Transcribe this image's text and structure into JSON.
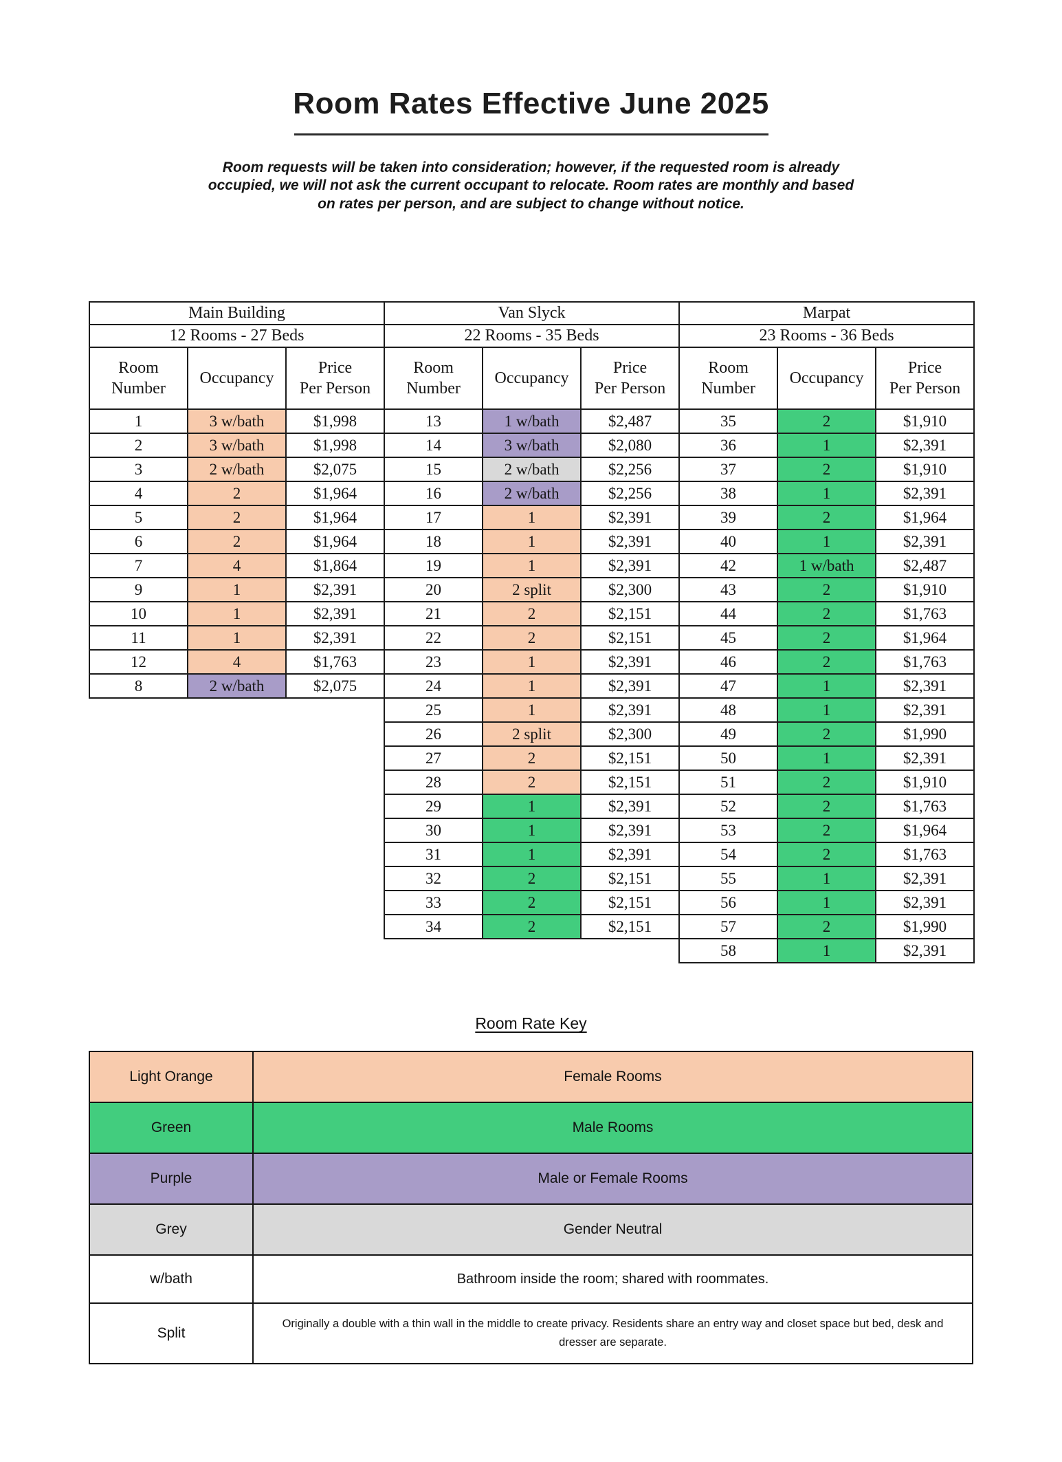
{
  "page": {
    "title": "Room Rates Effective June 2025",
    "intro": "Room requests will be taken into consideration; however, if the requested room is already occupied, we will not ask the current occupant to relocate. Room rates are monthly and based on rates per person, and are subject to change without notice."
  },
  "colors": {
    "orange": "#F8CBAD",
    "green": "#42CD7E",
    "purple": "#A89CC8",
    "grey": "#D9D9D9",
    "white": "#FFFFFF"
  },
  "table": {
    "column_headers": [
      "Room\nNumber",
      "Occupancy",
      "Price\nPer Person"
    ],
    "sections": [
      {
        "building": "Main Building",
        "subtitle": "12 Rooms - 27 Beds",
        "rows": [
          {
            "room": "1",
            "occupancy": "3 w/bath",
            "color": "orange",
            "price": "$1,998"
          },
          {
            "room": "2",
            "occupancy": "3 w/bath",
            "color": "orange",
            "price": "$1,998"
          },
          {
            "room": "3",
            "occupancy": "2 w/bath",
            "color": "orange",
            "price": "$2,075"
          },
          {
            "room": "4",
            "occupancy": "2",
            "color": "orange",
            "price": "$1,964"
          },
          {
            "room": "5",
            "occupancy": "2",
            "color": "orange",
            "price": "$1,964"
          },
          {
            "room": "6",
            "occupancy": "2",
            "color": "orange",
            "price": "$1,964"
          },
          {
            "room": "7",
            "occupancy": "4",
            "color": "orange",
            "price": "$1,864"
          },
          {
            "room": "9",
            "occupancy": "1",
            "color": "orange",
            "price": "$2,391"
          },
          {
            "room": "10",
            "occupancy": "1",
            "color": "orange",
            "price": "$2,391"
          },
          {
            "room": "11",
            "occupancy": "1",
            "color": "orange",
            "price": "$2,391"
          },
          {
            "room": "12",
            "occupancy": "4",
            "color": "orange",
            "price": "$1,763"
          },
          {
            "room": "8",
            "occupancy": "2 w/bath",
            "color": "purple",
            "price": "$2,075"
          }
        ]
      },
      {
        "building": "Van Slyck",
        "subtitle": "22 Rooms - 35 Beds",
        "rows": [
          {
            "room": "13",
            "occupancy": "1 w/bath",
            "color": "purple",
            "price": "$2,487"
          },
          {
            "room": "14",
            "occupancy": "3 w/bath",
            "color": "purple",
            "price": "$2,080"
          },
          {
            "room": "15",
            "occupancy": "2 w/bath",
            "color": "grey",
            "price": "$2,256"
          },
          {
            "room": "16",
            "occupancy": "2 w/bath",
            "color": "purple",
            "price": "$2,256"
          },
          {
            "room": "17",
            "occupancy": "1",
            "color": "orange",
            "price": "$2,391"
          },
          {
            "room": "18",
            "occupancy": "1",
            "color": "orange",
            "price": "$2,391"
          },
          {
            "room": "19",
            "occupancy": "1",
            "color": "orange",
            "price": "$2,391"
          },
          {
            "room": "20",
            "occupancy": "2 split",
            "color": "orange",
            "price": "$2,300"
          },
          {
            "room": "21",
            "occupancy": "2",
            "color": "orange",
            "price": "$2,151"
          },
          {
            "room": "22",
            "occupancy": "2",
            "color": "orange",
            "price": "$2,151"
          },
          {
            "room": "23",
            "occupancy": "1",
            "color": "orange",
            "price": "$2,391"
          },
          {
            "room": "24",
            "occupancy": "1",
            "color": "orange",
            "price": "$2,391"
          },
          {
            "room": "25",
            "occupancy": "1",
            "color": "orange",
            "price": "$2,391"
          },
          {
            "room": "26",
            "occupancy": "2 split",
            "color": "orange",
            "price": "$2,300"
          },
          {
            "room": "27",
            "occupancy": "2",
            "color": "orange",
            "price": "$2,151"
          },
          {
            "room": "28",
            "occupancy": "2",
            "color": "orange",
            "price": "$2,151"
          },
          {
            "room": "29",
            "occupancy": "1",
            "color": "green",
            "price": "$2,391"
          },
          {
            "room": "30",
            "occupancy": "1",
            "color": "green",
            "price": "$2,391"
          },
          {
            "room": "31",
            "occupancy": "1",
            "color": "green",
            "price": "$2,391"
          },
          {
            "room": "32",
            "occupancy": "2",
            "color": "green",
            "price": "$2,151"
          },
          {
            "room": "33",
            "occupancy": "2",
            "color": "green",
            "price": "$2,151"
          },
          {
            "room": "34",
            "occupancy": "2",
            "color": "green",
            "price": "$2,151"
          }
        ]
      },
      {
        "building": "Marpat",
        "subtitle": "23 Rooms - 36 Beds",
        "rows": [
          {
            "room": "35",
            "occupancy": "2",
            "color": "green",
            "price": "$1,910"
          },
          {
            "room": "36",
            "occupancy": "1",
            "color": "green",
            "price": "$2,391"
          },
          {
            "room": "37",
            "occupancy": "2",
            "color": "green",
            "price": "$1,910"
          },
          {
            "room": "38",
            "occupancy": "1",
            "color": "green",
            "price": "$2,391"
          },
          {
            "room": "39",
            "occupancy": "2",
            "color": "green",
            "price": "$1,964"
          },
          {
            "room": "40",
            "occupancy": "1",
            "color": "green",
            "price": "$2,391"
          },
          {
            "room": "42",
            "occupancy": "1 w/bath",
            "color": "green",
            "price": "$2,487"
          },
          {
            "room": "43",
            "occupancy": "2",
            "color": "green",
            "price": "$1,910"
          },
          {
            "room": "44",
            "occupancy": "2",
            "color": "green",
            "price": "$1,763"
          },
          {
            "room": "45",
            "occupancy": "2",
            "color": "green",
            "price": "$1,964"
          },
          {
            "room": "46",
            "occupancy": "2",
            "color": "green",
            "price": "$1,763"
          },
          {
            "room": "47",
            "occupancy": "1",
            "color": "green",
            "price": "$2,391"
          },
          {
            "room": "48",
            "occupancy": "1",
            "color": "green",
            "price": "$2,391"
          },
          {
            "room": "49",
            "occupancy": "2",
            "color": "green",
            "price": "$1,990"
          },
          {
            "room": "50",
            "occupancy": "1",
            "color": "green",
            "price": "$2,391"
          },
          {
            "room": "51",
            "occupancy": "2",
            "color": "green",
            "price": "$1,910"
          },
          {
            "room": "52",
            "occupancy": "2",
            "color": "green",
            "price": "$1,763"
          },
          {
            "room": "53",
            "occupancy": "2",
            "color": "green",
            "price": "$1,964"
          },
          {
            "room": "54",
            "occupancy": "2",
            "color": "green",
            "price": "$1,763"
          },
          {
            "room": "55",
            "occupancy": "1",
            "color": "green",
            "price": "$2,391"
          },
          {
            "room": "56",
            "occupancy": "1",
            "color": "green",
            "price": "$2,391"
          },
          {
            "room": "57",
            "occupancy": "2",
            "color": "green",
            "price": "$1,990"
          },
          {
            "room": "58",
            "occupancy": "1",
            "color": "green",
            "price": "$2,391"
          }
        ]
      }
    ]
  },
  "key": {
    "title": "Room Rate Key",
    "rows": [
      {
        "label": "Light Orange",
        "description": "Female Rooms",
        "color": "orange"
      },
      {
        "label": "Green",
        "description": "Male Rooms",
        "color": "green"
      },
      {
        "label": "Purple",
        "description": "Male or Female Rooms",
        "color": "purple"
      },
      {
        "label": "Grey",
        "description": "Gender Neutral",
        "color": "grey"
      },
      {
        "label": "w/bath",
        "description": "Bathroom inside the room; shared with roommates.",
        "color": "white"
      },
      {
        "label": "Split",
        "description": "Originally a double with a thin wall in the middle to create privacy. Residents share an entry way and closet space but bed, desk and dresser are separate.",
        "color": "white"
      }
    ]
  }
}
